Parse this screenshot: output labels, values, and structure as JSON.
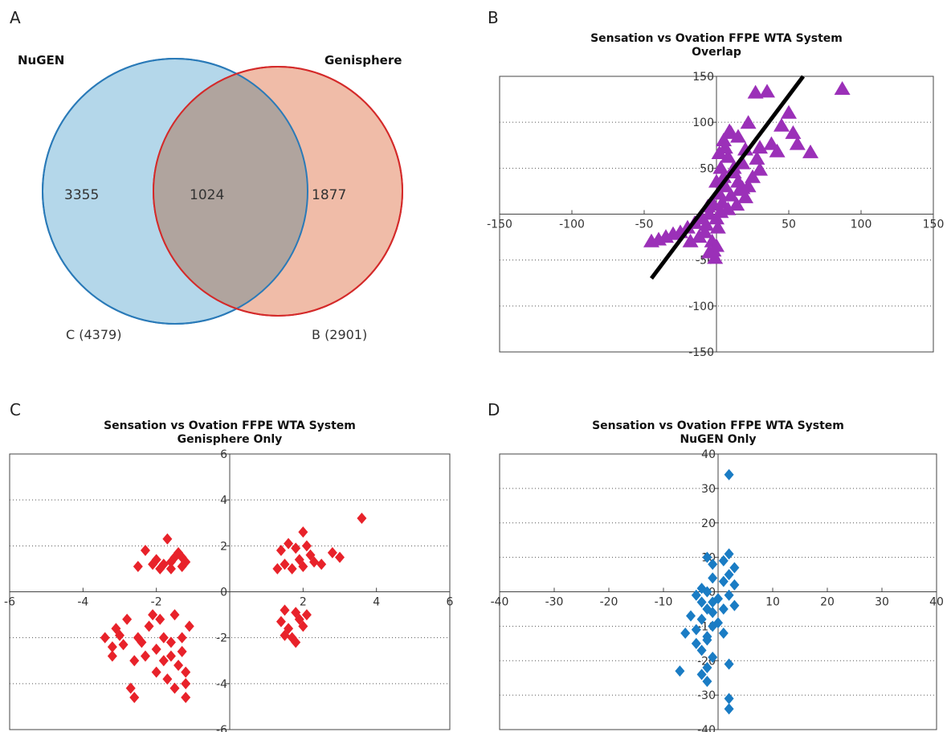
{
  "panel_letters": [
    "A",
    "B",
    "C",
    "D"
  ],
  "venn": {
    "left_title": "NuGEN",
    "right_title": "Genisphere",
    "left_only": "3355",
    "overlap": "1024",
    "right_only": "1877",
    "left_set": "C (4379)",
    "right_set": "B (2901)",
    "colors": {
      "left_fill": "#b4d7ea",
      "left_stroke": "#2a7ab8",
      "right_fill": "#f0bca8",
      "right_stroke": "#d42a2a",
      "overlap_fill": "#b0a49e"
    }
  },
  "chart_data": [
    {
      "id": "B",
      "type": "scatter",
      "title_line1": "Sensation vs Ovation FFPE WTA System",
      "title_line2": "Overlap",
      "xlim": [
        -150,
        150
      ],
      "ylim": [
        -150,
        150
      ],
      "xticks": [
        -150,
        -100,
        -50,
        0,
        50,
        100,
        150
      ],
      "yticks": [
        -150,
        -100,
        -50,
        0,
        50,
        100,
        150
      ],
      "grid": "horizontal-dotted",
      "marker": "triangle",
      "color": "#9b30b8",
      "trendline": {
        "x1": -45,
        "y1": -70,
        "x2": 60,
        "y2": 150,
        "color": "#000000"
      },
      "points": [
        [
          87,
          136
        ],
        [
          35,
          133
        ],
        [
          27,
          132
        ],
        [
          50,
          110
        ],
        [
          22,
          99
        ],
        [
          53,
          88
        ],
        [
          56,
          76
        ],
        [
          65,
          67
        ],
        [
          38,
          76
        ],
        [
          42,
          68
        ],
        [
          30,
          72
        ],
        [
          45,
          96
        ],
        [
          10,
          88
        ],
        [
          15,
          84
        ],
        [
          5,
          80
        ],
        [
          20,
          70
        ],
        [
          28,
          60
        ],
        [
          18,
          55
        ],
        [
          8,
          62
        ],
        [
          12,
          45
        ],
        [
          3,
          50
        ],
        [
          25,
          40
        ],
        [
          15,
          35
        ],
        [
          6,
          30
        ],
        [
          10,
          20
        ],
        [
          20,
          18
        ],
        [
          2,
          22
        ],
        [
          14,
          10
        ],
        [
          8,
          5
        ],
        [
          4,
          12
        ],
        [
          22,
          30
        ],
        [
          30,
          48
        ],
        [
          0,
          35
        ],
        [
          5,
          40
        ],
        [
          18,
          28
        ],
        [
          12,
          50
        ],
        [
          2,
          66
        ],
        [
          6,
          72
        ],
        [
          9,
          90
        ],
        [
          16,
          26
        ],
        [
          -2,
          10
        ],
        [
          -5,
          0
        ],
        [
          -10,
          -5
        ],
        [
          -15,
          -10
        ],
        [
          -20,
          -15
        ],
        [
          -25,
          -20
        ],
        [
          -30,
          -22
        ],
        [
          -35,
          -25
        ],
        [
          -40,
          -28
        ],
        [
          -45,
          -30
        ],
        [
          -8,
          -20
        ],
        [
          -3,
          -30
        ],
        [
          -2,
          -40
        ],
        [
          -1,
          -48
        ],
        [
          -5,
          -42
        ],
        [
          0,
          -35
        ],
        [
          -12,
          -25
        ],
        [
          -18,
          -30
        ],
        [
          0,
          -5
        ],
        [
          3,
          2
        ],
        [
          -7,
          -12
        ],
        [
          1,
          -15
        ],
        [
          -6,
          8
        ]
      ]
    },
    {
      "id": "C",
      "type": "scatter",
      "title_line1": "Sensation vs Ovation FFPE WTA System",
      "title_line2": "Genisphere Only",
      "xlim": [
        -6,
        6
      ],
      "ylim": [
        -6,
        6
      ],
      "xticks": [
        -6,
        -4,
        -2,
        0,
        2,
        4,
        6
      ],
      "yticks": [
        -6,
        -4,
        -2,
        0,
        2,
        4,
        6
      ],
      "grid": "horizontal-dotted",
      "marker": "diamond",
      "color": "#e8222a",
      "points": [
        [
          3.6,
          3.2
        ],
        [
          -1.7,
          2.3
        ],
        [
          -2.3,
          1.8
        ],
        [
          -2.5,
          1.1
        ],
        [
          -2,
          1.4
        ],
        [
          -1.8,
          1.2
        ],
        [
          -1.5,
          1.5
        ],
        [
          -1.3,
          1.1
        ],
        [
          -1.2,
          1.3
        ],
        [
          -1.4,
          1.7
        ],
        [
          -1.6,
          1.0
        ],
        [
          -2.1,
          1.2
        ],
        [
          -1.9,
          1.0
        ],
        [
          -1.3,
          1.5
        ],
        [
          -1.6,
          1.3
        ],
        [
          2.0,
          2.6
        ],
        [
          1.6,
          2.1
        ],
        [
          1.4,
          1.8
        ],
        [
          1.8,
          1.9
        ],
        [
          2.1,
          2.0
        ],
        [
          2.3,
          1.3
        ],
        [
          1.5,
          1.2
        ],
        [
          1.9,
          1.4
        ],
        [
          2.2,
          1.6
        ],
        [
          1.3,
          1.0
        ],
        [
          1.7,
          1.0
        ],
        [
          2.0,
          1.1
        ],
        [
          2.8,
          1.7
        ],
        [
          3.0,
          1.5
        ],
        [
          2.5,
          1.2
        ],
        [
          1.5,
          -0.8
        ],
        [
          1.8,
          -0.9
        ],
        [
          2.1,
          -1.0
        ],
        [
          1.4,
          -1.3
        ],
        [
          1.6,
          -1.6
        ],
        [
          1.7,
          -2.0
        ],
        [
          1.8,
          -2.2
        ],
        [
          1.5,
          -1.9
        ],
        [
          2.0,
          -1.5
        ],
        [
          1.9,
          -1.2
        ],
        [
          -3.4,
          -2.0
        ],
        [
          -3.1,
          -1.6
        ],
        [
          -2.8,
          -1.2
        ],
        [
          -2.5,
          -2.0
        ],
        [
          -2.2,
          -1.5
        ],
        [
          -2.0,
          -2.5
        ],
        [
          -1.8,
          -3.0
        ],
        [
          -1.5,
          -1.0
        ],
        [
          -1.3,
          -2.0
        ],
        [
          -1.2,
          -3.5
        ],
        [
          -1.2,
          -4.0
        ],
        [
          -1.2,
          -4.6
        ],
        [
          -1.5,
          -4.2
        ],
        [
          -1.7,
          -3.8
        ],
        [
          -2.6,
          -3.0
        ],
        [
          -2.7,
          -4.2
        ],
        [
          -2.6,
          -4.6
        ],
        [
          -3.2,
          -2.4
        ],
        [
          -3.2,
          -2.8
        ],
        [
          -1.9,
          -1.2
        ],
        [
          -1.6,
          -2.2
        ],
        [
          -2.3,
          -2.8
        ],
        [
          -1.4,
          -3.2
        ],
        [
          -2.1,
          -1.0
        ],
        [
          -1.1,
          -1.5
        ],
        [
          -1.8,
          -2.0
        ],
        [
          -2.4,
          -2.2
        ],
        [
          -1.3,
          -2.6
        ],
        [
          -2.0,
          -3.5
        ],
        [
          -1.6,
          -2.8
        ],
        [
          -2.9,
          -2.3
        ],
        [
          -3.0,
          -1.9
        ]
      ]
    },
    {
      "id": "D",
      "type": "scatter",
      "title_line1": "Sensation vs Ovation FFPE WTA System",
      "title_line2": "NuGEN Only",
      "xlim": [
        -40,
        40
      ],
      "ylim": [
        -40,
        40
      ],
      "xticks": [
        -40,
        -30,
        -20,
        -10,
        0,
        10,
        20,
        30,
        40
      ],
      "yticks": [
        -40,
        -30,
        -20,
        -10,
        0,
        10,
        20,
        30,
        40
      ],
      "grid": "horizontal-dotted",
      "marker": "diamond",
      "color": "#1a7cc4",
      "points": [
        [
          2,
          34
        ],
        [
          2,
          11
        ],
        [
          1,
          9
        ],
        [
          -2,
          10
        ],
        [
          -1,
          8
        ],
        [
          3,
          7
        ],
        [
          2,
          5
        ],
        [
          -1,
          4
        ],
        [
          1,
          3
        ],
        [
          3,
          2
        ],
        [
          -3,
          1
        ],
        [
          -2,
          0
        ],
        [
          -4,
          -1
        ],
        [
          0,
          -2
        ],
        [
          2,
          -1
        ],
        [
          -1,
          -3
        ],
        [
          3,
          -4
        ],
        [
          -2,
          -5
        ],
        [
          -5,
          -7
        ],
        [
          -3,
          -8
        ],
        [
          -1,
          -10
        ],
        [
          -6,
          -12
        ],
        [
          -2,
          -13
        ],
        [
          -4,
          -15
        ],
        [
          -3,
          -17
        ],
        [
          -1,
          -19
        ],
        [
          -2,
          -22
        ],
        [
          -7,
          -23
        ],
        [
          -3,
          -24
        ],
        [
          -2,
          -26
        ],
        [
          2,
          -21
        ],
        [
          2,
          -31
        ],
        [
          2,
          -34
        ],
        [
          -4,
          -11
        ],
        [
          -2,
          -14
        ],
        [
          -1,
          -6
        ],
        [
          1,
          -5
        ],
        [
          -3,
          -3
        ],
        [
          0,
          -9
        ],
        [
          1,
          -12
        ]
      ]
    }
  ]
}
